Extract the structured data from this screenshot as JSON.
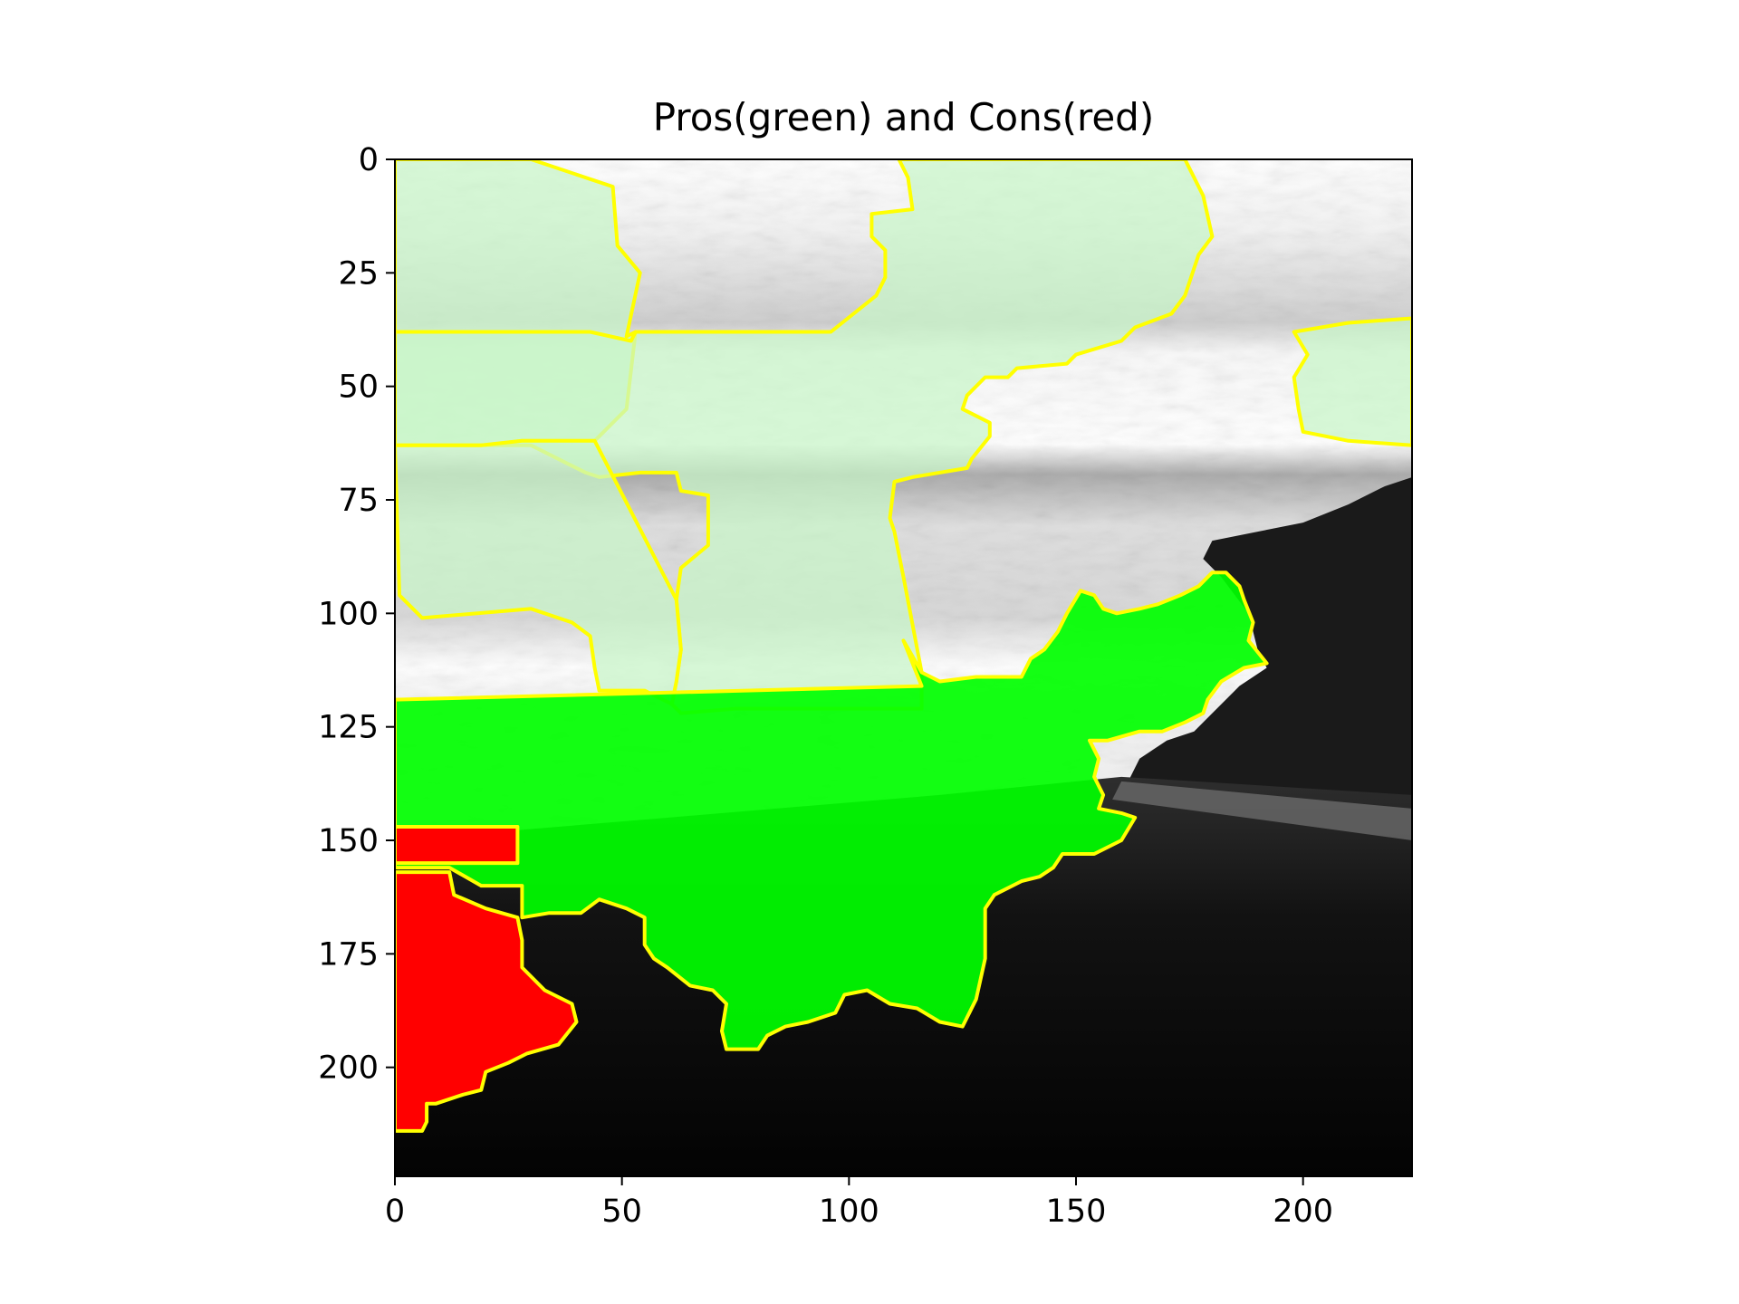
{
  "chart_data": {
    "type": "heatmap",
    "title": "Pros(green) and Cons(red)",
    "xlabel": "",
    "ylabel": "",
    "xlim": [
      0,
      224
    ],
    "ylim": [
      224,
      0
    ],
    "x_ticks": [
      0,
      50,
      100,
      150,
      200
    ],
    "y_ticks": [
      0,
      25,
      50,
      75,
      100,
      125,
      150,
      175,
      200
    ],
    "grid": false,
    "legend": "none",
    "image": "grayscale photo of a road scene under a cloudy sky with superpixel explanation overlay",
    "overlay": {
      "boundary_color": "#ffff00",
      "pros_color": "#00ff00",
      "cons_color": "#ff0000",
      "pros_light_color": "#c8f5c8",
      "regions": [
        {
          "kind": "pro-light",
          "outline": [
            [
              0,
              0
            ],
            [
              30,
              0
            ],
            [
              48,
              6
            ],
            [
              49,
              19
            ],
            [
              54,
              25
            ],
            [
              51,
              39
            ],
            [
              53,
              38
            ],
            [
              51,
              55
            ],
            [
              44,
              62
            ],
            [
              35,
              62
            ],
            [
              28,
              62
            ],
            [
              19,
              63
            ],
            [
              13,
              63
            ],
            [
              0,
              63
            ]
          ]
        },
        {
          "kind": "pro-light",
          "outline": [
            [
              111,
              0
            ],
            [
              174,
              0
            ],
            [
              178,
              8
            ],
            [
              180,
              17
            ],
            [
              177,
              21
            ],
            [
              174,
              30
            ],
            [
              171,
              34
            ],
            [
              163,
              37
            ],
            [
              160,
              40
            ],
            [
              150,
              43
            ],
            [
              148,
              45
            ],
            [
              137,
              46
            ],
            [
              135,
              48
            ],
            [
              130,
              48
            ],
            [
              126,
              52
            ],
            [
              125,
              55
            ],
            [
              131,
              58
            ],
            [
              131,
              61
            ],
            [
              127,
              66
            ],
            [
              126,
              68
            ],
            [
              114,
              70
            ],
            [
              110,
              71
            ],
            [
              109,
              79
            ],
            [
              110,
              82
            ],
            [
              112,
              92
            ],
            [
              116,
              113
            ],
            [
              116,
              121
            ],
            [
              75,
              121
            ],
            [
              63,
              122
            ],
            [
              61,
              120
            ],
            [
              62,
              115
            ],
            [
              63,
              108
            ],
            [
              62,
              97
            ],
            [
              63,
              90
            ],
            [
              69,
              85
            ],
            [
              69,
              74
            ],
            [
              63,
              73
            ],
            [
              62,
              69
            ],
            [
              59,
              69
            ],
            [
              57,
              69
            ],
            [
              54,
              69
            ],
            [
              45,
              70
            ],
            [
              42,
              69
            ],
            [
              38,
              67
            ],
            [
              30,
              63
            ],
            [
              13,
              63
            ],
            [
              0,
              63
            ],
            [
              0,
              38
            ],
            [
              43,
              38
            ],
            [
              52,
              40
            ],
            [
              53,
              38
            ],
            [
              84,
              38
            ],
            [
              86,
              38
            ],
            [
              96,
              38
            ],
            [
              106,
              30
            ],
            [
              108,
              26
            ],
            [
              108,
              20
            ],
            [
              105,
              17
            ],
            [
              105,
              12
            ],
            [
              114,
              11
            ],
            [
              113,
              4
            ]
          ]
        },
        {
          "kind": "pro-light",
          "outline": [
            [
              0,
              63
            ],
            [
              13,
              63
            ],
            [
              19,
              63
            ],
            [
              28,
              62
            ],
            [
              35,
              62
            ],
            [
              44,
              62
            ],
            [
              62,
              97
            ],
            [
              63,
              108
            ],
            [
              62,
              115
            ],
            [
              61,
              120
            ],
            [
              55,
              117
            ],
            [
              45,
              117
            ],
            [
              44,
              112
            ],
            [
              43,
              105
            ],
            [
              39,
              102
            ],
            [
              30,
              99
            ],
            [
              6,
              101
            ],
            [
              1,
              96
            ]
          ]
        },
        {
          "kind": "pro-light",
          "outline": [
            [
              198,
              38
            ],
            [
              210,
              36
            ],
            [
              224,
              35
            ],
            [
              224,
              63
            ],
            [
              210,
              62
            ],
            [
              200,
              60
            ],
            [
              199,
              55
            ],
            [
              198,
              48
            ],
            [
              201,
              43
            ]
          ]
        },
        {
          "kind": "pro",
          "outline": [
            [
              0,
              119
            ],
            [
              116,
              116
            ],
            [
              112,
              106
            ],
            [
              116,
              113
            ],
            [
              120,
              115
            ],
            [
              128,
              114
            ],
            [
              138,
              114
            ],
            [
              140,
              110
            ],
            [
              143,
              108
            ],
            [
              146,
              104
            ],
            [
              148,
              100
            ],
            [
              151,
              95
            ],
            [
              154,
              96
            ],
            [
              156,
              99
            ],
            [
              159,
              100
            ],
            [
              164,
              99
            ],
            [
              168,
              98
            ],
            [
              173,
              96
            ],
            [
              177,
              94
            ],
            [
              180,
              91
            ],
            [
              183,
              91
            ],
            [
              186,
              94
            ],
            [
              187,
              97
            ],
            [
              189,
              102
            ],
            [
              188,
              106
            ],
            [
              192,
              111
            ],
            [
              187,
              112
            ],
            [
              182,
              115
            ],
            [
              179,
              119
            ],
            [
              178,
              122
            ],
            [
              174,
              124
            ],
            [
              169,
              126
            ],
            [
              164,
              126
            ],
            [
              157,
              128
            ],
            [
              153,
              128
            ],
            [
              155,
              132
            ],
            [
              154,
              136
            ],
            [
              156,
              140
            ],
            [
              155,
              143
            ],
            [
              160,
              144
            ],
            [
              163,
              145
            ],
            [
              160,
              150
            ],
            [
              154,
              153
            ],
            [
              147,
              153
            ],
            [
              145,
              156
            ],
            [
              142,
              158
            ],
            [
              138,
              159
            ],
            [
              132,
              162
            ],
            [
              130,
              165
            ],
            [
              130,
              170
            ],
            [
              130,
              176
            ],
            [
              128,
              185
            ],
            [
              125,
              191
            ],
            [
              120,
              190
            ],
            [
              115,
              187
            ],
            [
              109,
              186
            ],
            [
              104,
              183
            ],
            [
              99,
              184
            ],
            [
              97,
              188
            ],
            [
              91,
              190
            ],
            [
              86,
              191
            ],
            [
              82,
              193
            ],
            [
              80,
              196
            ],
            [
              73,
              196
            ],
            [
              72,
              192
            ],
            [
              73,
              186
            ],
            [
              70,
              183
            ],
            [
              65,
              182
            ],
            [
              60,
              178
            ],
            [
              57,
              176
            ],
            [
              55,
              173
            ],
            [
              55,
              167
            ],
            [
              51,
              165
            ],
            [
              45,
              163
            ],
            [
              41,
              166
            ],
            [
              34,
              166
            ],
            [
              28,
              167
            ],
            [
              28,
              160
            ],
            [
              19,
              160
            ],
            [
              12,
              156
            ],
            [
              0,
              156
            ]
          ]
        },
        {
          "kind": "con",
          "outline": [
            [
              0,
              147
            ],
            [
              27,
              147
            ],
            [
              27,
              155
            ],
            [
              0,
              155
            ]
          ]
        },
        {
          "kind": "con",
          "outline": [
            [
              0,
              157
            ],
            [
              12,
              157
            ],
            [
              13,
              162
            ],
            [
              20,
              165
            ],
            [
              27,
              167
            ],
            [
              28,
              172
            ],
            [
              28,
              178
            ],
            [
              33,
              183
            ],
            [
              39,
              186
            ],
            [
              40,
              190
            ],
            [
              36,
              195
            ],
            [
              29,
              197
            ],
            [
              25,
              199
            ],
            [
              20,
              201
            ],
            [
              19,
              205
            ],
            [
              15,
              206
            ],
            [
              9,
              208
            ],
            [
              7,
              208
            ],
            [
              7,
              212
            ],
            [
              6,
              214
            ],
            [
              0,
              214
            ]
          ]
        }
      ]
    }
  }
}
